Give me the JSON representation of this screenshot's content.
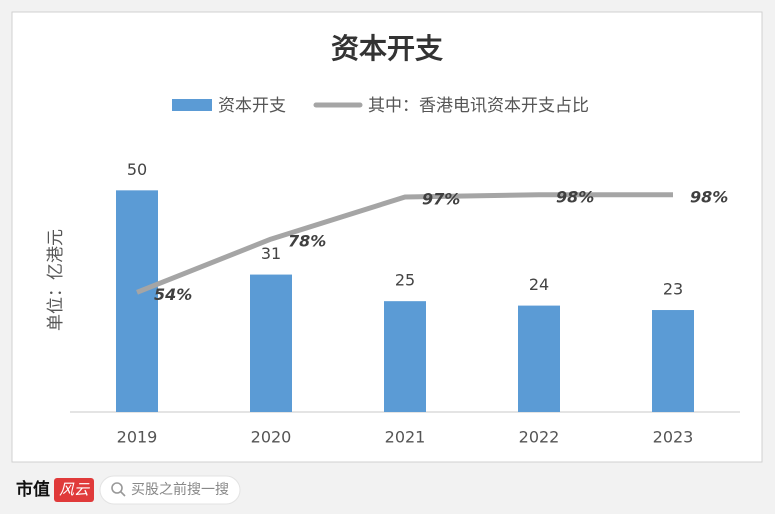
{
  "chart_data": {
    "type": "combo",
    "title": "资本开支",
    "y_label": "单位：亿港元",
    "categories": [
      "2019",
      "2020",
      "2021",
      "2022",
      "2023"
    ],
    "series": [
      {
        "name": "资本开支",
        "type": "bar",
        "color": "#5b9bd5",
        "values": [
          50,
          31,
          25,
          24,
          23
        ]
      },
      {
        "name": "其中：香港电讯资本开支占比",
        "type": "line",
        "axis": "y2",
        "color": "#a5a5a5",
        "values": [
          54,
          78,
          97,
          98,
          98
        ],
        "value_labels": [
          "54%",
          "78%",
          "97%",
          "98%",
          "98%"
        ]
      }
    ],
    "ylim": [
      0,
      60
    ],
    "y2lim": [
      0,
      120
    ],
    "legend": "top"
  },
  "footer": {
    "brand": "市值",
    "brand_mark": "风云",
    "search_placeholder": "买股之前搜一搜"
  }
}
